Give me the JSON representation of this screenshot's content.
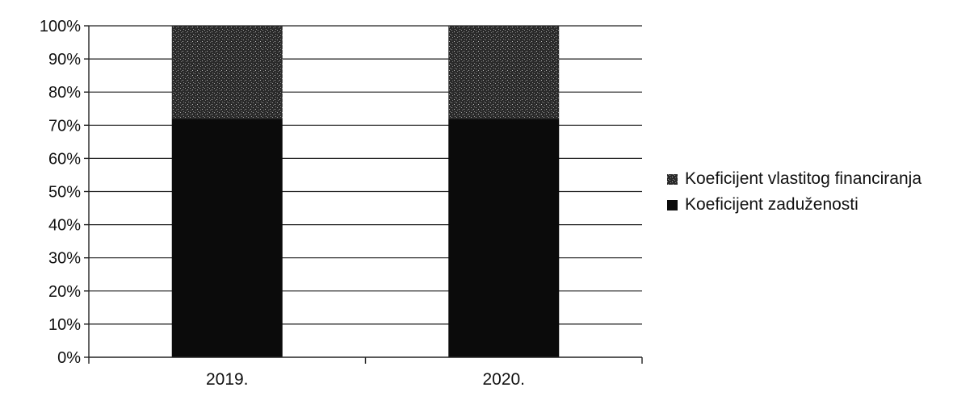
{
  "chart_data": {
    "type": "bar",
    "stacked": true,
    "title": "",
    "xlabel": "",
    "ylabel": "",
    "categories": [
      "2019.",
      "2020."
    ],
    "series": [
      {
        "name": "Koeficijent zaduženosti",
        "values": [
          72,
          72
        ],
        "color": "#0b0b0b",
        "pattern": "solid"
      },
      {
        "name": "Koeficijent vlastitog financiranja",
        "values": [
          28,
          28
        ],
        "color": "#3a3a3a",
        "pattern": "speckled"
      }
    ],
    "ylim": [
      0,
      100
    ],
    "yticks": [
      "0%",
      "10%",
      "20%",
      "30%",
      "40%",
      "50%",
      "60%",
      "70%",
      "80%",
      "90%",
      "100%"
    ],
    "grid": true,
    "legend_position": "right"
  }
}
